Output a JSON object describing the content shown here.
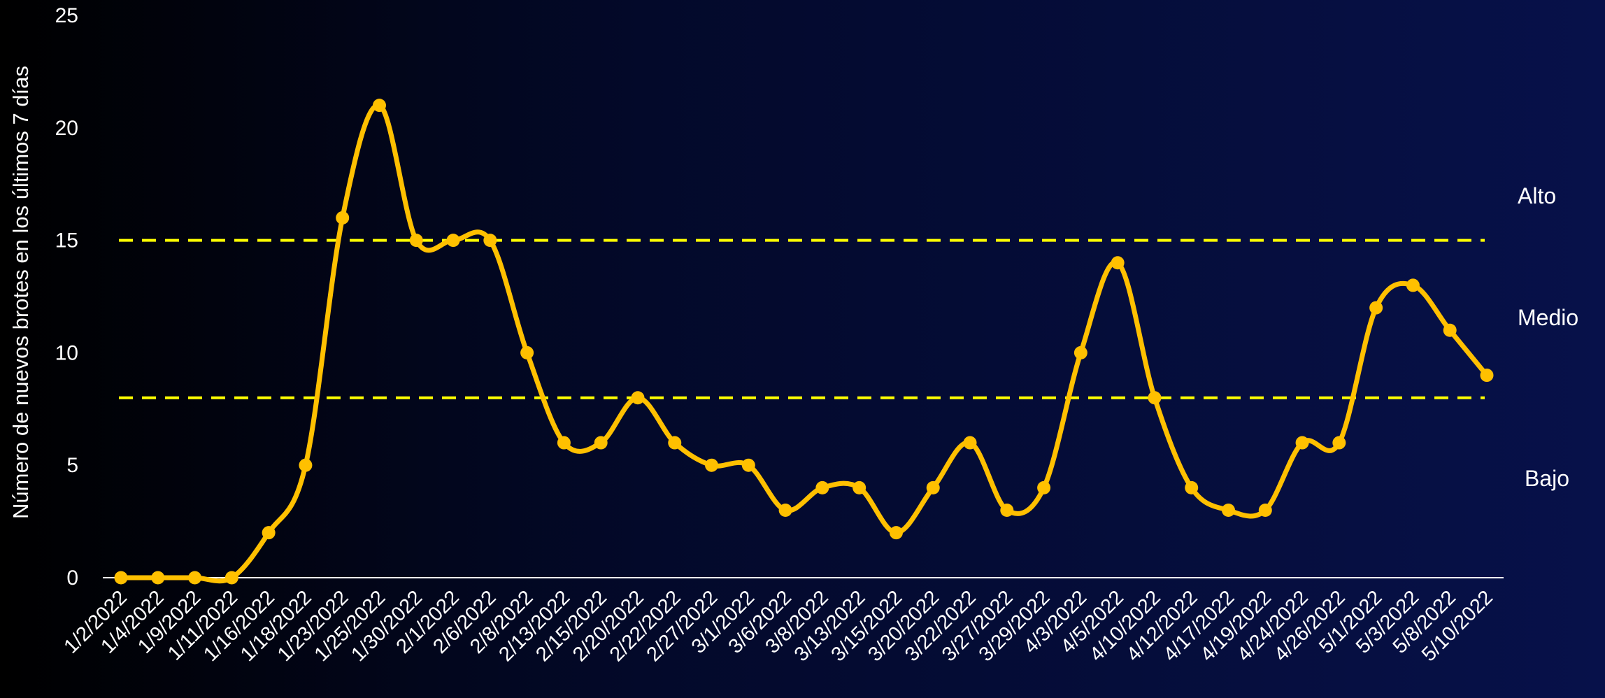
{
  "chart_data": {
    "type": "line",
    "ylabel": "Número de nuevos brotes en los últimos 7 días",
    "xlabel": "",
    "ylim": [
      0,
      25
    ],
    "yticks": [
      0,
      5,
      10,
      15,
      20,
      25
    ],
    "categories": [
      "1/2/2022",
      "1/4/2022",
      "1/9/2022",
      "1/11/2022",
      "1/16/2022",
      "1/18/2022",
      "1/23/2022",
      "1/25/2022",
      "1/30/2022",
      "2/1/2022",
      "2/6/2022",
      "2/8/2022",
      "2/13/2022",
      "2/15/2022",
      "2/20/2022",
      "2/22/2022",
      "2/27/2022",
      "3/1/2022",
      "3/6/2022",
      "3/8/2022",
      "3/13/2022",
      "3/15/2022",
      "3/20/2022",
      "3/22/2022",
      "3/27/2022",
      "3/29/2022",
      "4/3/2022",
      "4/5/2022",
      "4/10/2022",
      "4/12/2022",
      "4/17/2022",
      "4/19/2022",
      "4/24/2022",
      "4/26/2022",
      "5/1/2022",
      "5/3/2022",
      "5/8/2022",
      "5/10/2022"
    ],
    "series": [
      {
        "values": [
          0,
          0,
          0,
          0,
          2,
          5,
          16,
          21,
          15,
          15,
          15,
          10,
          6,
          6,
          8,
          6,
          5,
          5,
          3,
          4,
          4,
          2,
          4,
          6,
          3,
          4,
          10,
          14,
          8,
          4,
          3,
          3,
          6,
          6,
          12,
          13,
          11,
          9
        ],
        "color": "#ffc000"
      }
    ],
    "thresholds": [
      {
        "value": 15,
        "color": "#ffff00",
        "style": "dashed"
      },
      {
        "value": 8,
        "color": "#ffff00",
        "style": "dashed"
      }
    ],
    "level_labels": [
      "Alto",
      "Medio",
      "Bajo"
    ],
    "grid": false,
    "legend": "none"
  },
  "colors": {
    "line": "#ffc000",
    "threshold": "#ffff00",
    "axis": "#ffffff",
    "text": "#ffffff"
  }
}
